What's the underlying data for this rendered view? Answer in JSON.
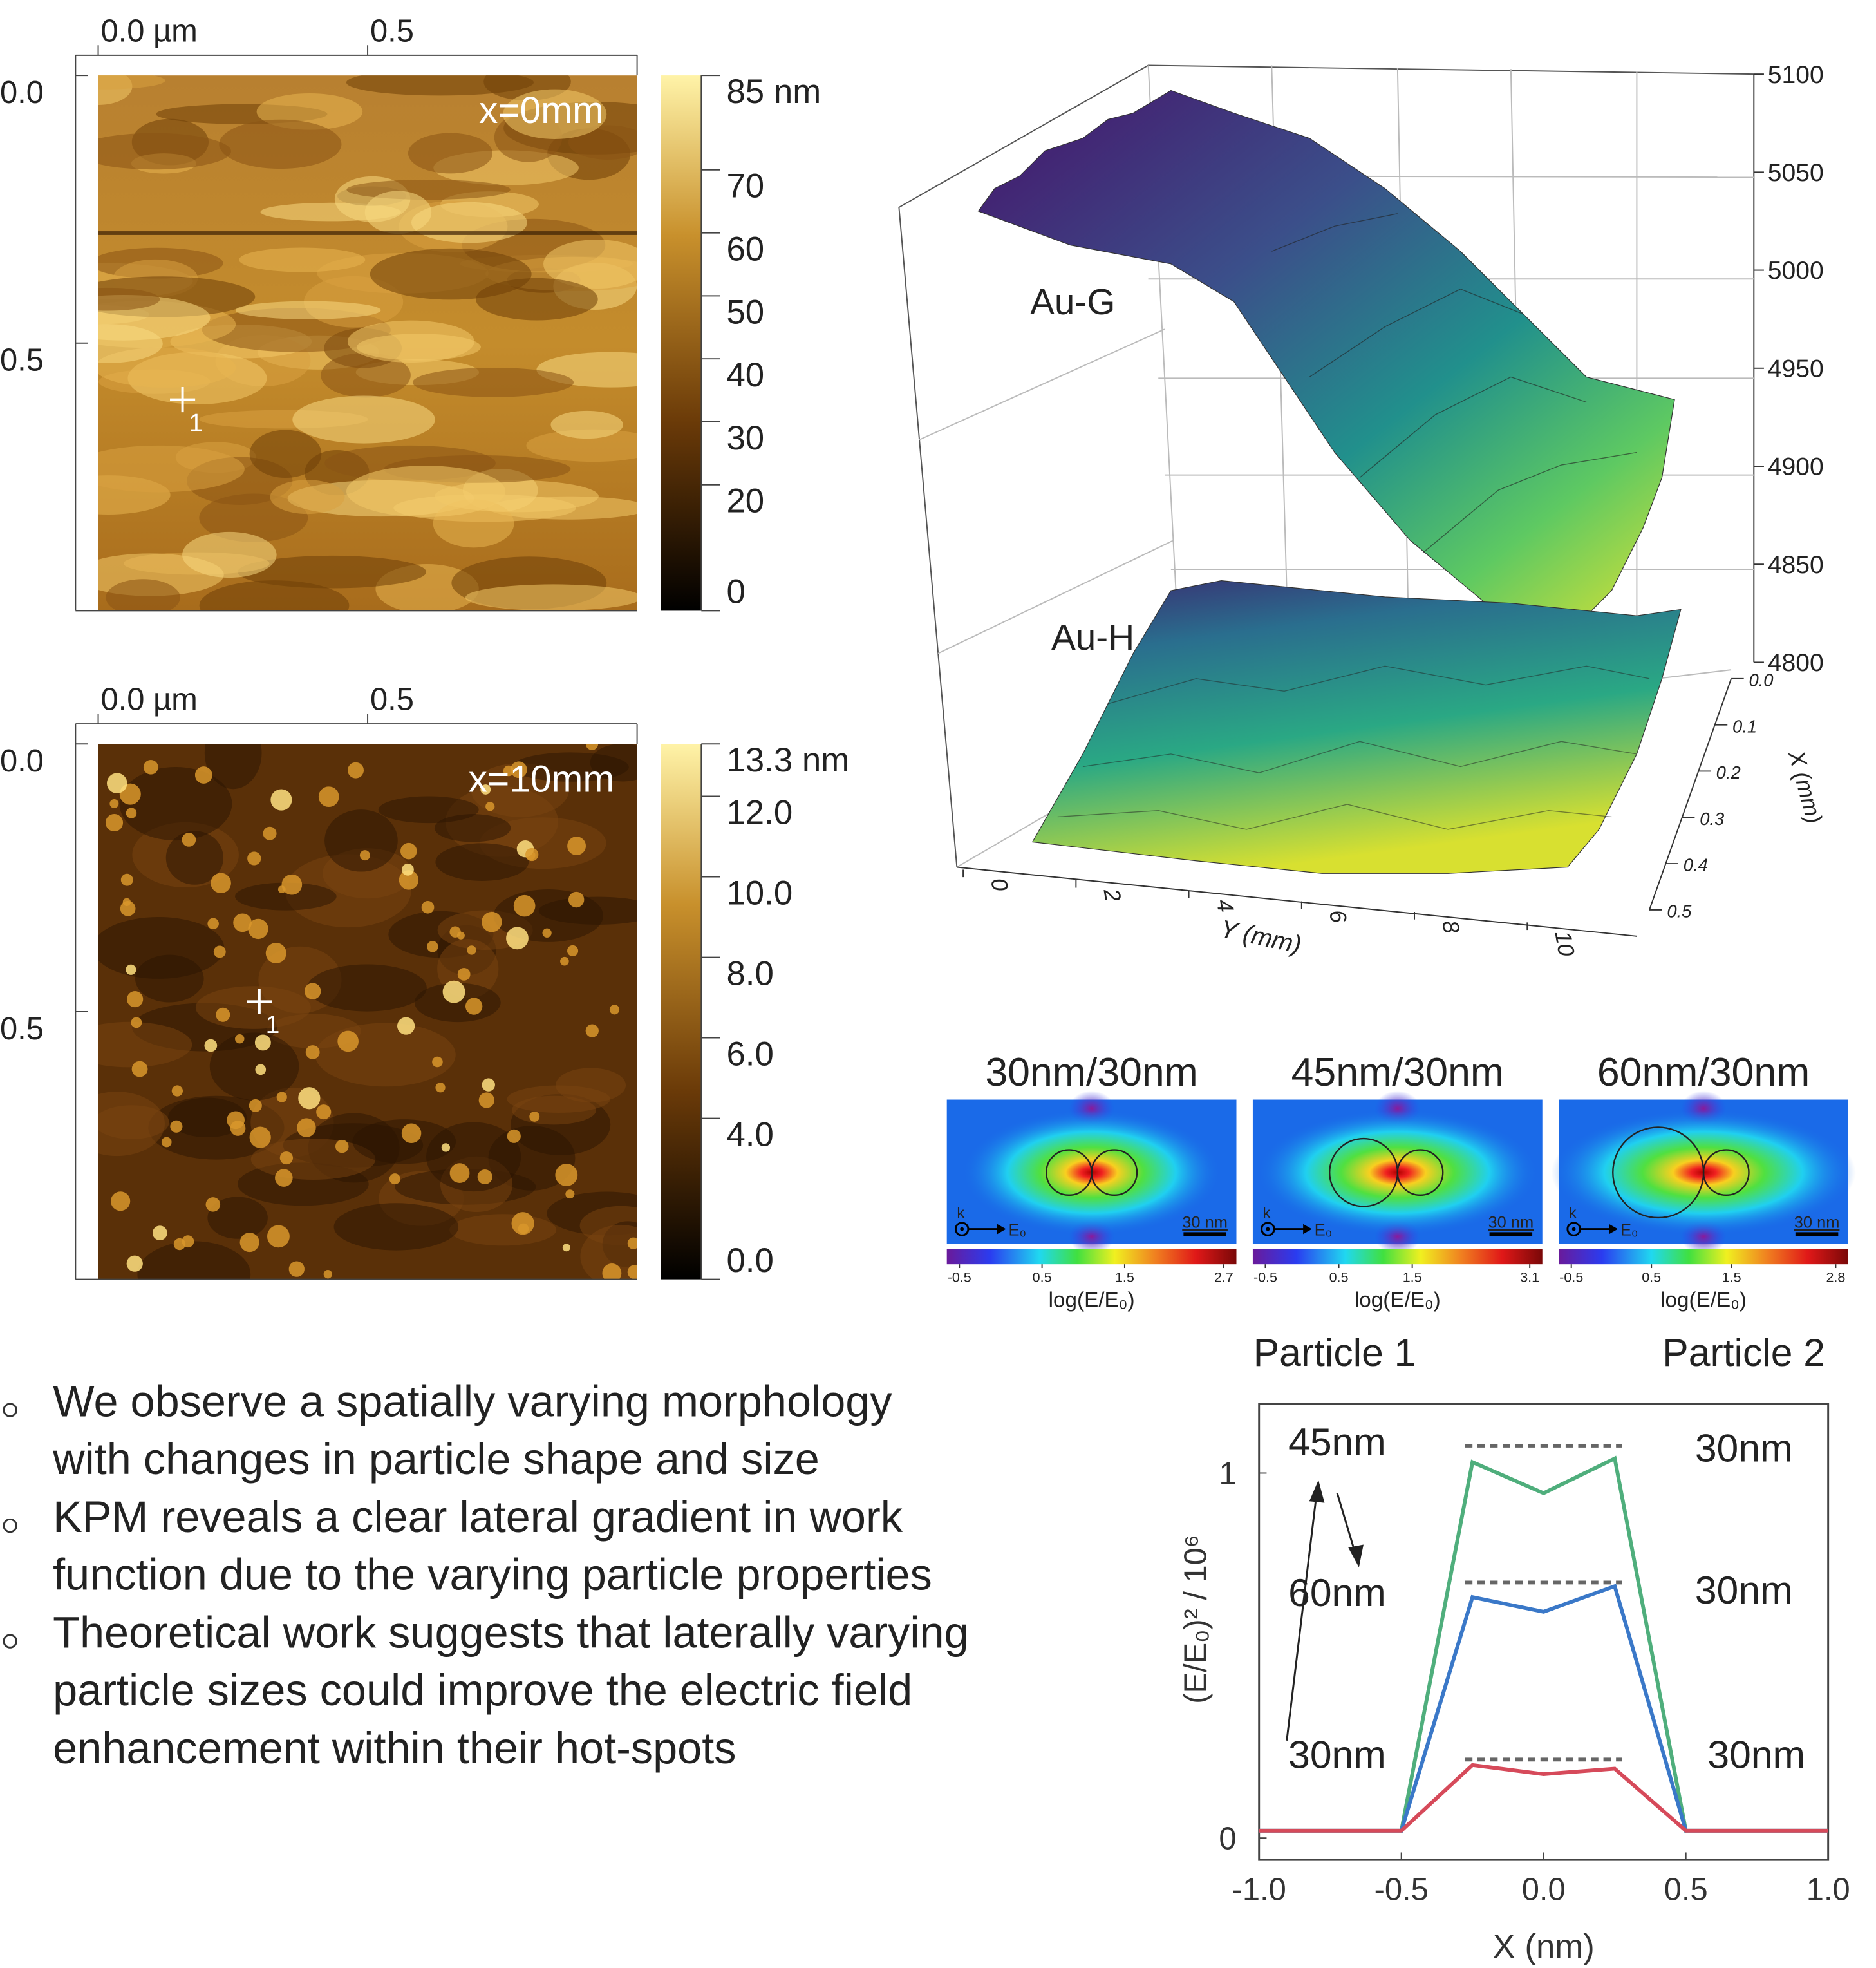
{
  "chart_data": [
    {
      "type": "afm",
      "xlim": [
        0,
        1
      ],
      "xticks": [
        {
          "value": 0,
          "label": "0.0 µm"
        },
        0.5
      ],
      "ylim": [
        0,
        1
      ],
      "yticks": [
        {
          "value": 0,
          "label": "0.0"
        },
        0.5
      ],
      "annotation": "x=0mm",
      "marker_label": "1",
      "colorbar": {
        "lim": [
          0,
          85
        ],
        "ticks": [
          {
            "value": 85,
            "label": "85 nm"
          },
          70,
          60,
          50,
          40,
          30,
          20,
          0
        ]
      }
    },
    {
      "type": "afm",
      "xlim": [
        0,
        1
      ],
      "xticks": [
        {
          "value": 0,
          "label": "0.0 µm"
        },
        0.5
      ],
      "ylim": [
        0,
        1
      ],
      "yticks": [
        {
          "value": 0,
          "label": "0.0"
        },
        0.5
      ],
      "annotation": "x=10mm",
      "marker_label": "1",
      "colorbar": {
        "lim": [
          0,
          13.3
        ],
        "ticks": [
          {
            "value": 13.3,
            "label": "13.3 nm"
          },
          {
            "value": 12,
            "label": "12.0"
          },
          {
            "value": 10,
            "label": "10.0"
          },
          {
            "value": 8,
            "label": "8.0"
          },
          {
            "value": 6,
            "label": "6.0"
          },
          {
            "value": 4,
            "label": "4.0"
          },
          {
            "value": 0,
            "label": "0.0"
          }
        ]
      }
    },
    {
      "type": "surface3d",
      "zlim": [
        4800,
        5100
      ],
      "zticks": [
        4800,
        4850,
        4900,
        4950,
        5000,
        5050,
        5100
      ],
      "xlim": [
        0,
        0.5
      ],
      "xticks": [
        {
          "value": 0,
          "label": "0.0"
        },
        0.1,
        0.2,
        0.3,
        0.4,
        0.5
      ],
      "xlabel": "X (mm)",
      "ylim": [
        0,
        10
      ],
      "yticks": [
        0,
        2,
        4,
        6,
        8,
        10
      ],
      "ylabel": "Y (mm)",
      "annotations": [
        "Au-G",
        "Au-H"
      ]
    },
    {
      "type": "field-map",
      "title": "30nm/30nm",
      "colorbar": {
        "lim": [
          -0.5,
          2.7
        ],
        "ticks": [
          -0.5,
          0.5,
          1.5,
          2.7
        ],
        "label": "log(E/E₀)"
      },
      "scale_bar": "30 nm",
      "k_label": "k",
      "e_label": "E₀"
    },
    {
      "type": "field-map",
      "title": "45nm/30nm",
      "colorbar": {
        "lim": [
          -0.5,
          3.1
        ],
        "ticks": [
          -0.5,
          0.5,
          1.5,
          3.1
        ],
        "label": "log(E/E₀)"
      },
      "scale_bar": "30 nm",
      "k_label": "k",
      "e_label": "E₀"
    },
    {
      "type": "field-map",
      "title": "60nm/30nm",
      "colorbar": {
        "lim": [
          -0.5,
          2.8
        ],
        "ticks": [
          -0.5,
          0.5,
          1.5,
          2.8
        ],
        "label": "log(E/E₀)"
      },
      "scale_bar": "30 nm",
      "k_label": "k",
      "e_label": "E₀"
    },
    {
      "type": "line",
      "x": [
        -1,
        -0.5,
        -0.25,
        0,
        0.25,
        0.5,
        1
      ],
      "series": [
        {
          "color": "#4fae7c",
          "values": [
            0.02,
            0.02,
            1.03,
            0.945,
            1.04,
            0.02,
            0.02
          ]
        },
        {
          "color": "#3a78c8",
          "values": [
            0.02,
            0.02,
            0.66,
            0.62,
            0.69,
            0.02,
            0.02
          ]
        },
        {
          "color": "#d64a5a",
          "values": [
            0.02,
            0.02,
            0.2,
            0.175,
            0.19,
            0.02,
            0.02
          ]
        }
      ],
      "reference_levels": [
        1.075,
        0.7,
        0.215
      ],
      "xlim": [
        -1,
        1
      ],
      "xticks": [
        {
          "value": -1,
          "label": "-1.0"
        },
        -0.5,
        {
          "value": 0,
          "label": "0.0"
        },
        0.5,
        {
          "value": 1,
          "label": "1.0"
        }
      ],
      "ylim": [
        -0.06,
        1.19
      ],
      "yticks": [
        0,
        1
      ],
      "xlabel": "X (nm)",
      "ylabel": "(E/E₀)² / 10⁶",
      "annotations": {
        "left": [
          "45nm",
          "60nm",
          "30nm"
        ],
        "right": [
          "30nm",
          "30nm",
          "30nm"
        ],
        "particles": [
          "Particle 1",
          "Particle 2"
        ]
      }
    }
  ],
  "bullets": [
    [
      "We observe a spatially varying morphology",
      "with changes in particle shape and size"
    ],
    [
      "KPM reveals a clear lateral gradient in work",
      "function due to the varying particle properties"
    ],
    [
      "Theoretical work suggests that laterally varying",
      "particle sizes could improve the electric field",
      "enhancement within their hot-spots"
    ]
  ]
}
